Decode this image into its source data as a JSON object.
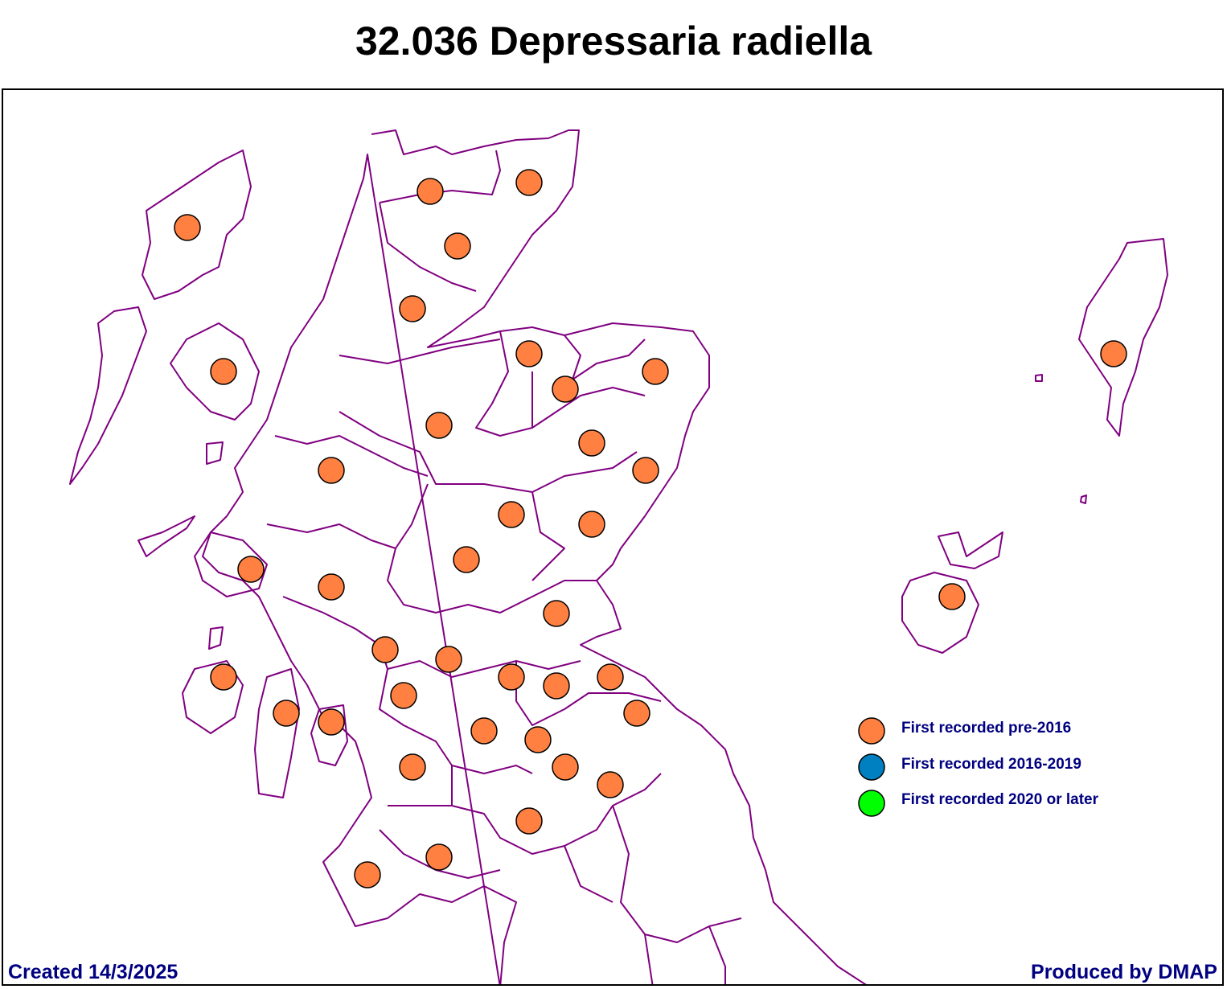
{
  "title": "32.036 Depressaria radiella",
  "footer": {
    "created": "Created 14/3/2025",
    "produced": "Produced by DMAP"
  },
  "colors": {
    "boundary": "#800080",
    "pre_2016": "#FF8040",
    "2016_2019": "#0080C0",
    "2020_later": "#00FF00",
    "text": "#000080"
  },
  "legend": [
    {
      "label": "First recorded pre-2016",
      "color": "#FF8040"
    },
    {
      "label": "First recorded 2016-2019",
      "color": "#0080C0"
    },
    {
      "label": "First recorded 2020 or later",
      "color": "#00FF00"
    }
  ],
  "records": {
    "category": "First recorded pre-2016",
    "count": 41
  }
}
